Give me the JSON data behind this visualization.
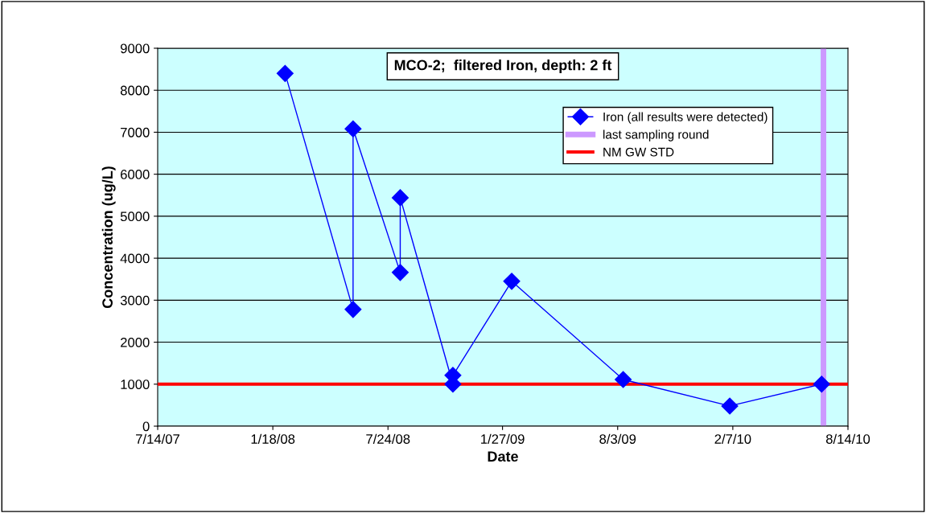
{
  "chart_data": {
    "type": "line",
    "title": "MCO-2;  filtered Iron, depth: 2 ft",
    "xlabel": "Date",
    "ylabel": "Concentration (ug/L)",
    "series": [
      {
        "name": "Iron (all results were detected)",
        "color": "#0000ff",
        "x": [
          "2008-02-07",
          "2008-05-28",
          "2008-05-28",
          "2008-08-13",
          "2008-08-13",
          "2008-11-07",
          "2008-11-07",
          "2009-02-11",
          "2009-08-12",
          "2010-02-02",
          "2010-07-02"
        ],
        "values": [
          8400,
          2780,
          7080,
          3660,
          5440,
          1000,
          1210,
          3450,
          1110,
          480,
          1000
        ]
      },
      {
        "name": "last sampling round",
        "color": "#cc99ff",
        "marker": "none",
        "x": [
          "2010-07-05",
          "2010-07-05"
        ],
        "values": [
          0,
          9000
        ]
      }
    ],
    "ref_lines": [
      {
        "axis": "y",
        "value": 1000,
        "label": "NM GW STD",
        "color": "#ff0000"
      }
    ],
    "xlim": [
      "2007-07-14",
      "2010-08-14"
    ],
    "xticks": [
      {
        "value": "2007-07-14",
        "label": "7/14/07"
      },
      {
        "value": "2008-01-18",
        "label": "1/18/08"
      },
      {
        "value": "2008-07-24",
        "label": "7/24/08"
      },
      {
        "value": "2009-01-27",
        "label": "1/27/09"
      },
      {
        "value": "2009-08-03",
        "label": "8/3/09"
      },
      {
        "value": "2010-02-07",
        "label": "2/7/10"
      },
      {
        "value": "2010-08-14",
        "label": "8/14/10"
      }
    ],
    "ylim": [
      0,
      9000
    ],
    "yticks": [
      0,
      1000,
      2000,
      3000,
      4000,
      5000,
      6000,
      7000,
      8000,
      9000
    ],
    "grid": "y",
    "legend": "top right",
    "marker": "diamond",
    "line_style": "solid"
  }
}
